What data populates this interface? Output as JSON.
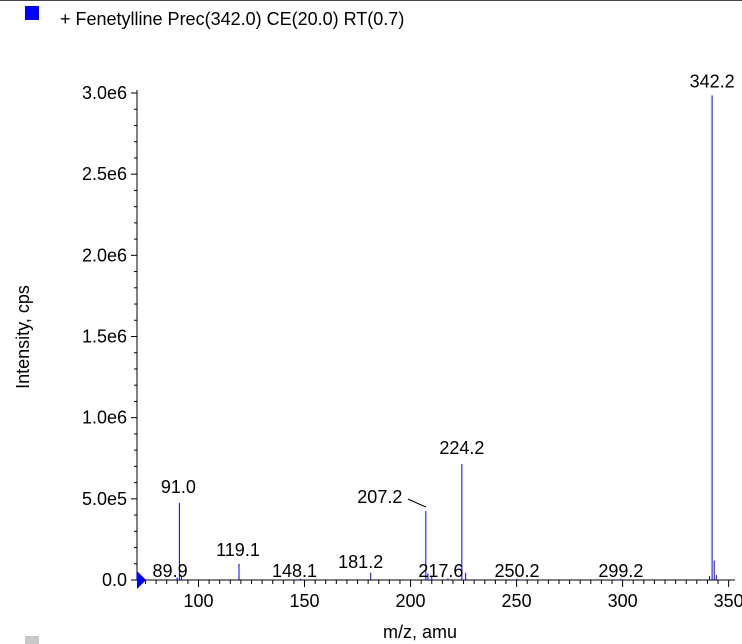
{
  "legend": {
    "label": "+ Fenetylline Prec(342.0) CE(20.0) RT(0.7)",
    "color": "#0000ff"
  },
  "chart_data": {
    "type": "bar",
    "title": "+ Fenetylline Prec(342.0) CE(20.0) RT(0.7)",
    "xlabel": "m/z, amu",
    "ylabel": "Intensity, cps",
    "xlim": [
      71,
      353
    ],
    "ylim": [
      0,
      3000000
    ],
    "xticks": [
      100,
      150,
      200,
      250,
      300,
      350
    ],
    "yticks": [
      0,
      500000,
      1000000,
      1500000,
      2000000,
      2500000,
      3000000
    ],
    "ytick_labels": [
      "0.0",
      "5.0e5",
      "1.0e6",
      "1.5e6",
      "2.0e6",
      "2.5e6",
      "3.0e6"
    ],
    "series": [
      {
        "color": "#0000ff",
        "peaks": [
          {
            "mz": 89.9,
            "intensity": 15000,
            "label": "89.9"
          },
          {
            "mz": 91.0,
            "intensity": 475000,
            "label": "91.0"
          },
          {
            "mz": 92.0,
            "intensity": 25000,
            "label": ""
          },
          {
            "mz": 119.1,
            "intensity": 100000,
            "label": "119.1"
          },
          {
            "mz": 148.1,
            "intensity": 8000,
            "label": "148.1"
          },
          {
            "mz": 181.2,
            "intensity": 45000,
            "label": "181.2"
          },
          {
            "mz": 207.2,
            "intensity": 425000,
            "label": "207.2"
          },
          {
            "mz": 208.2,
            "intensity": 40000,
            "label": ""
          },
          {
            "mz": 210.0,
            "intensity": 20000,
            "label": ""
          },
          {
            "mz": 217.6,
            "intensity": 10000,
            "label": "217.6"
          },
          {
            "mz": 224.2,
            "intensity": 715000,
            "label": "224.2"
          },
          {
            "mz": 226.0,
            "intensity": 45000,
            "label": ""
          },
          {
            "mz": 250.2,
            "intensity": 8000,
            "label": "250.2"
          },
          {
            "mz": 299.2,
            "intensity": 8000,
            "label": "299.2"
          },
          {
            "mz": 341.0,
            "intensity": 25000,
            "label": ""
          },
          {
            "mz": 342.2,
            "intensity": 2985000,
            "label": "342.2"
          },
          {
            "mz": 343.2,
            "intensity": 120000,
            "label": ""
          },
          {
            "mz": 344.2,
            "intensity": 30000,
            "label": ""
          }
        ]
      }
    ],
    "grid": false,
    "legend_position": "top-left"
  }
}
